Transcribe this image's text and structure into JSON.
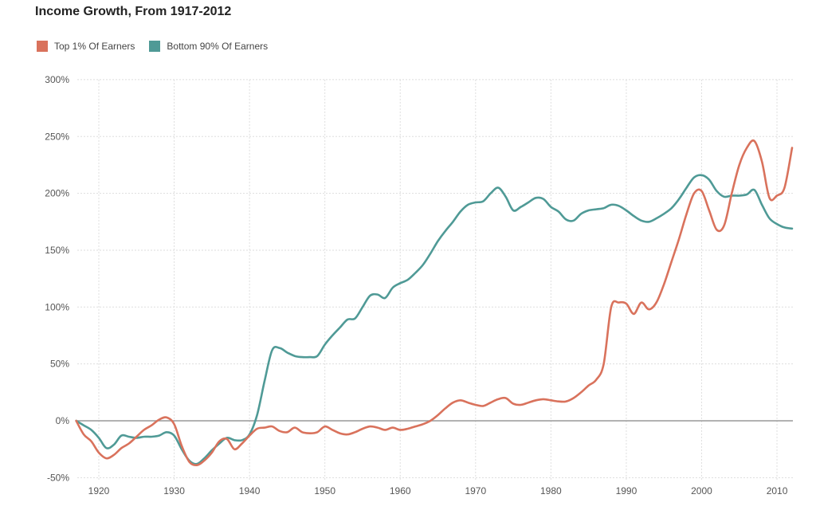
{
  "chart_data": {
    "type": "line",
    "title": "Income Growth, From 1917-2012",
    "xlabel": "",
    "ylabel": "",
    "xlim": [
      1917,
      2012
    ],
    "ylim": [
      -50,
      300
    ],
    "grid": true,
    "legend_position": "top-left",
    "x_ticks": [
      1920,
      1930,
      1940,
      1950,
      1960,
      1970,
      1980,
      1990,
      2000,
      2010
    ],
    "y_ticks": [
      -50,
      0,
      50,
      100,
      150,
      200,
      250,
      300
    ],
    "y_tick_labels": [
      "-50%",
      "0%",
      "50%",
      "100%",
      "150%",
      "200%",
      "250%",
      "300%"
    ],
    "x_tick_labels": [
      "1920",
      "1930",
      "1940",
      "1950",
      "1960",
      "1970",
      "1980",
      "1990",
      "2000",
      "2010"
    ],
    "x": [
      1917,
      1918,
      1919,
      1920,
      1921,
      1922,
      1923,
      1924,
      1925,
      1926,
      1927,
      1928,
      1929,
      1930,
      1931,
      1932,
      1933,
      1934,
      1935,
      1936,
      1937,
      1938,
      1939,
      1940,
      1941,
      1942,
      1943,
      1944,
      1945,
      1946,
      1947,
      1948,
      1949,
      1950,
      1951,
      1952,
      1953,
      1954,
      1955,
      1956,
      1957,
      1958,
      1959,
      1960,
      1961,
      1962,
      1963,
      1964,
      1965,
      1966,
      1967,
      1968,
      1969,
      1970,
      1971,
      1972,
      1973,
      1974,
      1975,
      1976,
      1977,
      1978,
      1979,
      1980,
      1981,
      1982,
      1983,
      1984,
      1985,
      1986,
      1987,
      1988,
      1989,
      1990,
      1991,
      1992,
      1993,
      1994,
      1995,
      1996,
      1997,
      1998,
      1999,
      2000,
      2001,
      2002,
      2003,
      2004,
      2005,
      2006,
      2007,
      2008,
      2009,
      2010,
      2011,
      2012
    ],
    "series": [
      {
        "name": "Top 1% Of Earners",
        "color": "#d9725c",
        "values": [
          0,
          -12,
          -18,
          -28,
          -33,
          -30,
          -24,
          -20,
          -14,
          -8,
          -4,
          1,
          3,
          -3,
          -22,
          -36,
          -39,
          -35,
          -28,
          -18,
          -16,
          -25,
          -20,
          -13,
          -7,
          -6,
          -5,
          -9,
          -10,
          -6,
          -10,
          -11,
          -10,
          -5,
          -8,
          -11,
          -12,
          -10,
          -7,
          -5,
          -6,
          -8,
          -6,
          -8,
          -7,
          -5,
          -3,
          0,
          5,
          11,
          16,
          18,
          16,
          14,
          13,
          16,
          19,
          20,
          15,
          14,
          16,
          18,
          19,
          18,
          17,
          17,
          20,
          25,
          31,
          36,
          50,
          100,
          104,
          103,
          94,
          104,
          98,
          104,
          120,
          140,
          160,
          182,
          200,
          202,
          185,
          168,
          172,
          200,
          225,
          240,
          246,
          228,
          196,
          198,
          205,
          240
        ]
      },
      {
        "name": "Bottom 90% Of Earners",
        "color": "#4f9a96",
        "values": [
          0,
          -4,
          -8,
          -15,
          -24,
          -21,
          -13,
          -14,
          -15,
          -14,
          -14,
          -13,
          -10,
          -13,
          -25,
          -35,
          -38,
          -33,
          -26,
          -20,
          -15,
          -17,
          -17,
          -12,
          5,
          35,
          62,
          64,
          60,
          57,
          56,
          56,
          57,
          67,
          75,
          82,
          89,
          90,
          100,
          110,
          111,
          108,
          117,
          121,
          124,
          130,
          137,
          147,
          158,
          167,
          175,
          184,
          190,
          192,
          193,
          200,
          205,
          197,
          185,
          188,
          192,
          196,
          195,
          188,
          184,
          177,
          176,
          182,
          185,
          186,
          187,
          190,
          189,
          185,
          180,
          176,
          175,
          178,
          182,
          187,
          195,
          205,
          214,
          216,
          212,
          202,
          197,
          198,
          198,
          199,
          203,
          190,
          178,
          173,
          170,
          169
        ]
      }
    ],
    "baseline_value": 0,
    "colors": {
      "grid": "#dddddd",
      "baseline": "#999999",
      "tick_text": "#555555"
    }
  }
}
